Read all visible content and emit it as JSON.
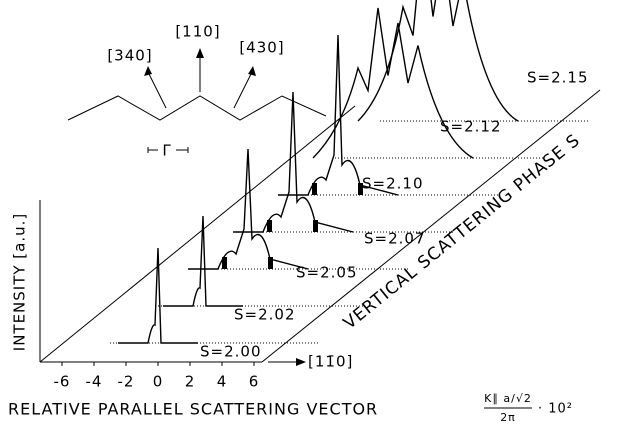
{
  "figure": {
    "y_label": "INTENSITY [a.u.]",
    "x_label": "RELATIVE PARALLEL SCATTERING VECTOR",
    "x_formula": {
      "numerator": "K∥ a/√2",
      "denominator": "2π",
      "factor": "· 10²"
    },
    "xticks": [
      -6,
      -4,
      -2,
      0,
      2,
      4,
      6
    ],
    "x_direction": "[11̄0]",
    "depth_label": "VERTICAL SCATTERING PHASE S",
    "traces": [
      "S=2.00",
      "S=2.02",
      "S=2.05",
      "S=2.07",
      "S=2.10",
      "S=2.12",
      "S=2.15"
    ],
    "directions": [
      "[340]",
      "[110]",
      "[430]"
    ],
    "gamma": "Γ"
  }
}
